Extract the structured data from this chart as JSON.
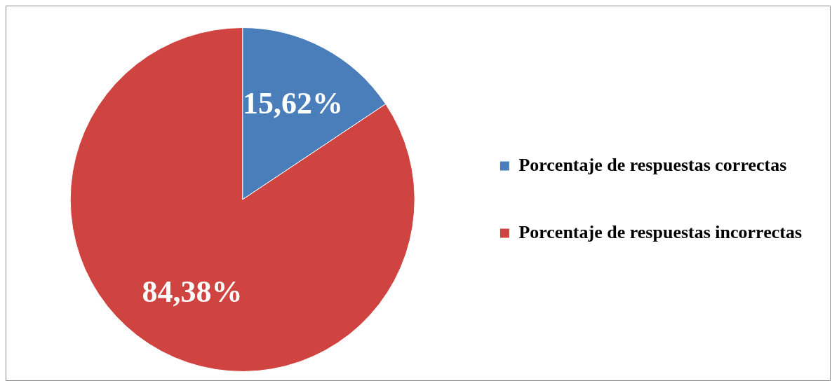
{
  "chart_data": {
    "type": "pie",
    "categories": [
      "Porcentaje de respuestas correctas",
      "Porcentaje de respuestas incorrectas"
    ],
    "values": [
      15.62,
      84.38
    ],
    "value_labels": [
      "15,62%",
      "84,38%"
    ],
    "colors": [
      "#4a7ebb",
      "#cf4440"
    ],
    "legend": "right"
  }
}
